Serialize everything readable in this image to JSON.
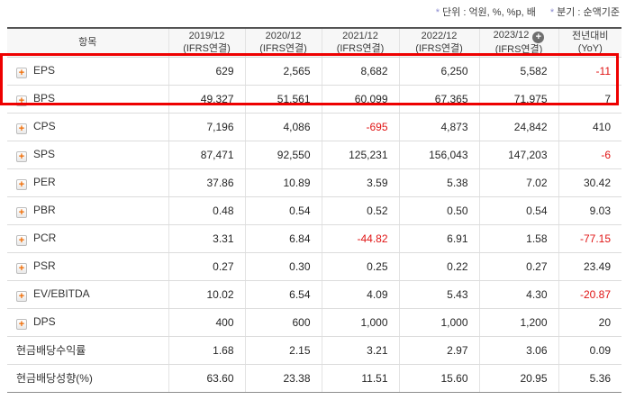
{
  "meta_notes": [
    {
      "marker": "*",
      "text": "단위 : 억원, %, %p, 배"
    },
    {
      "marker": "*",
      "text": "분기 : 순액기준"
    }
  ],
  "icons": {
    "row_expand_glyph": "+",
    "header_add_glyph": "+"
  },
  "colors": {
    "negative_value": "#e01414",
    "highlight_border": "#ee0000",
    "expand_icon_plus": "#f06a00",
    "note_marker": "#8c8cd0",
    "header_background": "#f7f7f7"
  },
  "table": {
    "item_column_header": "항목",
    "year_columns": [
      {
        "period": "2019/12",
        "standard": "(IFRS연결)",
        "has_add_icon": false
      },
      {
        "period": "2020/12",
        "standard": "(IFRS연결)",
        "has_add_icon": false
      },
      {
        "period": "2021/12",
        "standard": "(IFRS연결)",
        "has_add_icon": false
      },
      {
        "period": "2022/12",
        "standard": "(IFRS연결)",
        "has_add_icon": false
      },
      {
        "period": "2023/12",
        "standard": "(IFRS연결)",
        "has_add_icon": true
      },
      {
        "period": "전년대비",
        "standard": "(YoY)",
        "has_add_icon": false
      }
    ],
    "rows": [
      {
        "label": "EPS",
        "expandable": true,
        "highlighted": true,
        "values": [
          "629",
          "2,565",
          "8,682",
          "6,250",
          "5,582",
          "-11"
        ]
      },
      {
        "label": "BPS",
        "expandable": true,
        "highlighted": true,
        "values": [
          "49,327",
          "51,561",
          "60,099",
          "67,365",
          "71,975",
          "7"
        ]
      },
      {
        "label": "CPS",
        "expandable": true,
        "highlighted": false,
        "values": [
          "7,196",
          "4,086",
          "-695",
          "4,873",
          "24,842",
          "410"
        ]
      },
      {
        "label": "SPS",
        "expandable": true,
        "highlighted": false,
        "values": [
          "87,471",
          "92,550",
          "125,231",
          "156,043",
          "147,203",
          "-6"
        ]
      },
      {
        "label": "PER",
        "expandable": true,
        "highlighted": false,
        "values": [
          "37.86",
          "10.89",
          "3.59",
          "5.38",
          "7.02",
          "30.42"
        ]
      },
      {
        "label": "PBR",
        "expandable": true,
        "highlighted": false,
        "values": [
          "0.48",
          "0.54",
          "0.52",
          "0.50",
          "0.54",
          "9.03"
        ]
      },
      {
        "label": "PCR",
        "expandable": true,
        "highlighted": false,
        "values": [
          "3.31",
          "6.84",
          "-44.82",
          "6.91",
          "1.58",
          "-77.15"
        ]
      },
      {
        "label": "PSR",
        "expandable": true,
        "highlighted": false,
        "values": [
          "0.27",
          "0.30",
          "0.25",
          "0.22",
          "0.27",
          "23.49"
        ]
      },
      {
        "label": "EV/EBITDA",
        "expandable": true,
        "highlighted": false,
        "values": [
          "10.02",
          "6.54",
          "4.09",
          "5.43",
          "4.30",
          "-20.87"
        ]
      },
      {
        "label": "DPS",
        "expandable": true,
        "highlighted": false,
        "values": [
          "400",
          "600",
          "1,000",
          "1,000",
          "1,200",
          "20"
        ]
      },
      {
        "label": "현금배당수익률",
        "expandable": false,
        "highlighted": false,
        "values": [
          "1.68",
          "2.15",
          "3.21",
          "2.97",
          "3.06",
          "0.09"
        ]
      },
      {
        "label": "현금배당성향(%)",
        "expandable": false,
        "highlighted": false,
        "values": [
          "63.60",
          "23.38",
          "11.51",
          "15.60",
          "20.95",
          "5.36"
        ]
      }
    ]
  }
}
